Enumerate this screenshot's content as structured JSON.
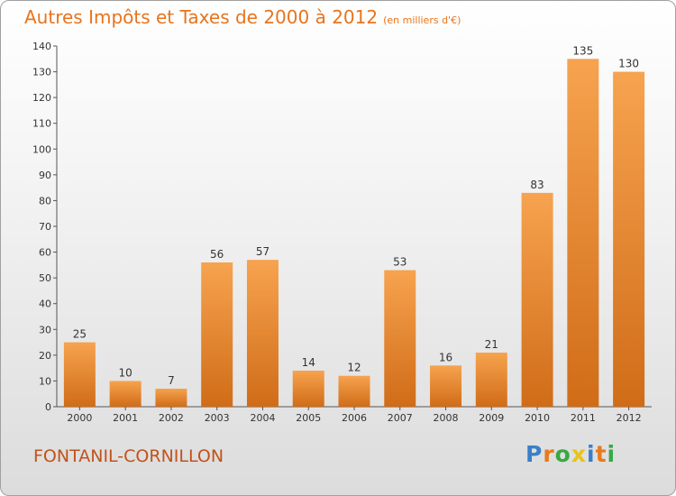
{
  "header": {
    "title": "Autres Impôts et Taxes de 2000 à 2012",
    "unit_note": "(en milliers d'€)"
  },
  "footer": {
    "place": "FONTANIL-CORNILLON",
    "brand": "Proxiti",
    "brand_letters": [
      {
        "char": "P",
        "color": "#3a7fc8"
      },
      {
        "char": "r",
        "color": "#e87a1c"
      },
      {
        "char": "o",
        "color": "#3aa845"
      },
      {
        "char": "x",
        "color": "#e8c41c"
      },
      {
        "char": "i",
        "color": "#3a7fc8"
      },
      {
        "char": "t",
        "color": "#e87a1c"
      },
      {
        "char": "i",
        "color": "#3aa845"
      }
    ]
  },
  "colors": {
    "bar_light": "#f7a34f",
    "bar_dark": "#d06c18",
    "title": "#e8741c",
    "place": "#c2521a"
  },
  "chart_data": {
    "type": "bar",
    "categories": [
      "2000",
      "2001",
      "2002",
      "2003",
      "2004",
      "2005",
      "2006",
      "2007",
      "2008",
      "2009",
      "2010",
      "2011",
      "2012"
    ],
    "values": [
      25,
      10,
      7,
      56,
      57,
      14,
      12,
      53,
      16,
      21,
      83,
      135,
      130
    ],
    "value_labels": [
      "25",
      "10",
      "7",
      "56",
      "57",
      "14",
      "12",
      "53",
      "16",
      "21",
      "83",
      "135",
      "130"
    ],
    "title": "Autres Impôts et Taxes de 2000 à 2012",
    "ylim": [
      0,
      140
    ],
    "yticks": [
      0,
      10,
      20,
      30,
      40,
      50,
      60,
      70,
      80,
      90,
      100,
      110,
      120,
      130,
      140
    ],
    "ytick_labels": [
      "0",
      "10",
      "20",
      "30",
      "40",
      "50",
      "60",
      "70",
      "80",
      "90",
      "100",
      "110",
      "120",
      "130",
      "140"
    ],
    "grid": false
  }
}
